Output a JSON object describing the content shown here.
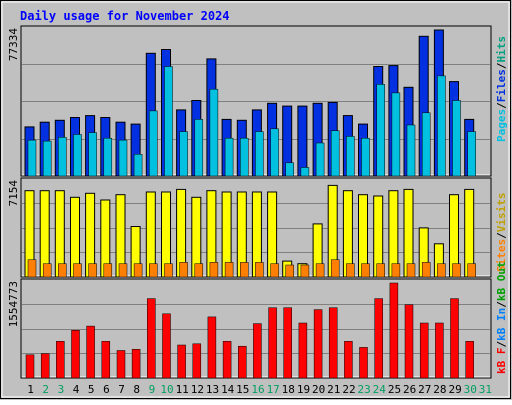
{
  "title": "Daily usage for November 2024",
  "colors": {
    "background": "#c0c0c0",
    "pages": "#00c0e0",
    "files": "#0030e0",
    "hits": "#00a080",
    "visits": "#ffff00",
    "sites": "#ff8000",
    "kbin": "#0080ff",
    "kbout": "#00a000",
    "kbf": "#ff0000",
    "title_text": "#0000ff",
    "weekday_label": "#000000",
    "weekend_label": "#00a060"
  },
  "chart_data": [
    {
      "type": "bar",
      "name": "hits-files-pages",
      "max_label": "77334",
      "ymax": 77334,
      "categories": [
        "1",
        "2",
        "3",
        "4",
        "5",
        "6",
        "7",
        "8",
        "9",
        "10",
        "11",
        "12",
        "13",
        "14",
        "15",
        "16",
        "17",
        "18",
        "19",
        "20",
        "21",
        "22",
        "23",
        "24",
        "25",
        "26",
        "27",
        "28",
        "29",
        "30",
        "31"
      ],
      "weekend": [
        false,
        true,
        true,
        false,
        false,
        false,
        false,
        false,
        true,
        true,
        false,
        false,
        false,
        false,
        false,
        true,
        true,
        false,
        false,
        false,
        false,
        false,
        true,
        true,
        false,
        false,
        false,
        false,
        false,
        true,
        true
      ],
      "series": [
        {
          "name": "Hits",
          "values": [
            26000,
            28500,
            29500,
            31000,
            32000,
            31000,
            28500,
            27500,
            65000,
            67000,
            35000,
            40000,
            62000,
            30000,
            29500,
            35000,
            38500,
            37000,
            37000,
            38500,
            39000,
            32000,
            27500,
            58000,
            58500,
            47000,
            74000,
            77334,
            50000,
            30000,
            0
          ]
        },
        {
          "name": "Files",
          "values": [
            26000,
            28500,
            29500,
            31000,
            32000,
            31000,
            28500,
            27500,
            65000,
            67000,
            35000,
            40000,
            62000,
            30000,
            29500,
            35000,
            38500,
            37000,
            37000,
            38500,
            39000,
            32000,
            27500,
            58000,
            58500,
            47000,
            74000,
            77334,
            50000,
            30000,
            0
          ]
        },
        {
          "name": "Pages",
          "values": [
            19000,
            18500,
            20500,
            22000,
            23000,
            20000,
            19000,
            11500,
            34500,
            58000,
            23500,
            30000,
            46000,
            20000,
            20000,
            23500,
            25000,
            7000,
            4500,
            17500,
            24000,
            21000,
            20000,
            48500,
            44000,
            27000,
            33500,
            53000,
            40000,
            23500,
            0
          ]
        }
      ],
      "side_labels": [
        "Pages",
        "Files",
        "Hits"
      ]
    },
    {
      "type": "bar",
      "name": "visits-sites",
      "max_label": "7154",
      "ymax": 7154,
      "categories": [
        "1",
        "2",
        "3",
        "4",
        "5",
        "6",
        "7",
        "8",
        "9",
        "10",
        "11",
        "12",
        "13",
        "14",
        "15",
        "16",
        "17",
        "18",
        "19",
        "20",
        "21",
        "22",
        "23",
        "24",
        "25",
        "26",
        "27",
        "28",
        "29",
        "30",
        "31"
      ],
      "series": [
        {
          "name": "Visits",
          "values": [
            6500,
            6500,
            6500,
            6000,
            6300,
            5800,
            6200,
            3800,
            6400,
            6400,
            6600,
            6000,
            6500,
            6400,
            6400,
            6400,
            6400,
            1200,
            1000,
            4000,
            6900,
            6500,
            6200,
            6100,
            6500,
            6600,
            3700,
            2500,
            6200,
            6600,
            0
          ]
        },
        {
          "name": "Sites",
          "values": [
            1300,
            1000,
            1000,
            1000,
            1000,
            1000,
            1000,
            1000,
            1000,
            1000,
            1100,
            1000,
            1100,
            1100,
            1100,
            1100,
            1000,
            900,
            900,
            1000,
            1300,
            1000,
            1000,
            1000,
            1000,
            1000,
            1100,
            1000,
            1000,
            1000,
            0
          ]
        }
      ],
      "side_labels": [
        "Sites",
        "Visits"
      ]
    },
    {
      "type": "bar",
      "name": "kbytes",
      "max_label": "1554773",
      "ymax": 1554773,
      "categories": [
        "1",
        "2",
        "3",
        "4",
        "5",
        "6",
        "7",
        "8",
        "9",
        "10",
        "11",
        "12",
        "13",
        "14",
        "15",
        "16",
        "17",
        "18",
        "19",
        "20",
        "21",
        "22",
        "23",
        "24",
        "25",
        "26",
        "27",
        "28",
        "29",
        "30",
        "31"
      ],
      "series": [
        {
          "name": "kB F",
          "values": [
            380000,
            400000,
            600000,
            780000,
            850000,
            600000,
            450000,
            470000,
            1300000,
            1050000,
            540000,
            560000,
            1000000,
            600000,
            520000,
            890000,
            1150000,
            1150000,
            900000,
            1120000,
            1150000,
            600000,
            500000,
            1300000,
            1554773,
            1200000,
            900000,
            900000,
            1300000,
            600000,
            0
          ]
        }
      ],
      "side_labels": [
        "kB F",
        "kB In",
        "kB Out"
      ]
    }
  ],
  "day_labels": [
    "1",
    "2",
    "3",
    "4",
    "5",
    "6",
    "7",
    "8",
    "9",
    "10",
    "11",
    "12",
    "13",
    "14",
    "15",
    "16",
    "17",
    "18",
    "19",
    "20",
    "21",
    "22",
    "23",
    "24",
    "25",
    "26",
    "27",
    "28",
    "29",
    "30",
    "31"
  ],
  "right_labels": {
    "top": [
      {
        "text": "Pages",
        "color": "#00c0e0"
      },
      {
        "text": "/",
        "color": "#000000"
      },
      {
        "text": "Files",
        "color": "#0030e0"
      },
      {
        "text": "/",
        "color": "#000000"
      },
      {
        "text": "Hits",
        "color": "#00a080"
      }
    ],
    "mid": [
      {
        "text": "Sites",
        "color": "#ff8000"
      },
      {
        "text": "/",
        "color": "#000000"
      },
      {
        "text": "Visits",
        "color": "#c0a000"
      }
    ],
    "bot": [
      {
        "text": "kB F",
        "color": "#ff0000"
      },
      {
        "text": "/",
        "color": "#000000"
      },
      {
        "text": "kB In",
        "color": "#0080ff"
      },
      {
        "text": "/",
        "color": "#000000"
      },
      {
        "text": "kB Out",
        "color": "#00a000"
      }
    ]
  }
}
